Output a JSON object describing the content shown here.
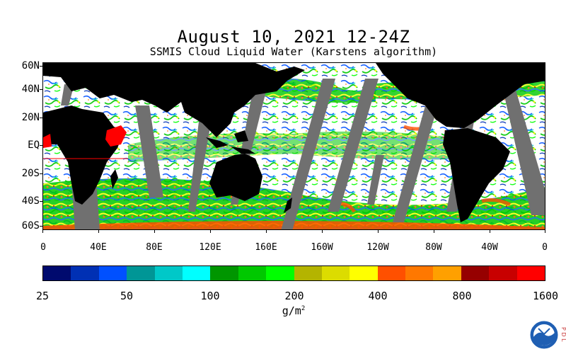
{
  "header": {
    "title": "August 10, 2021 12-24Z",
    "subtitle": "SSMIS Cloud Liquid Water (Karstens algorithm)"
  },
  "map": {
    "lat_labels": [
      "60N",
      "40N",
      "20N",
      "EQ",
      "20S",
      "40S",
      "60S"
    ],
    "lon_labels": [
      "0",
      "40E",
      "80E",
      "120E",
      "160E",
      "160W",
      "120W",
      "80W",
      "40W",
      "0"
    ]
  },
  "colorbar": {
    "colors": [
      "#000a6e",
      "#0030b4",
      "#0050ff",
      "#009696",
      "#00c8c8",
      "#00ffff",
      "#009600",
      "#00c800",
      "#00ff00",
      "#b4b400",
      "#dcdc00",
      "#ffff00",
      "#ff5000",
      "#ff7800",
      "#ffa000",
      "#960000",
      "#c80000",
      "#ff0000"
    ],
    "labels": [
      "25",
      "50",
      "100",
      "200",
      "400",
      "800",
      "1600"
    ],
    "units_base": "g/m",
    "units_exp": "2"
  },
  "footer": {
    "side_text": "P D L"
  }
}
